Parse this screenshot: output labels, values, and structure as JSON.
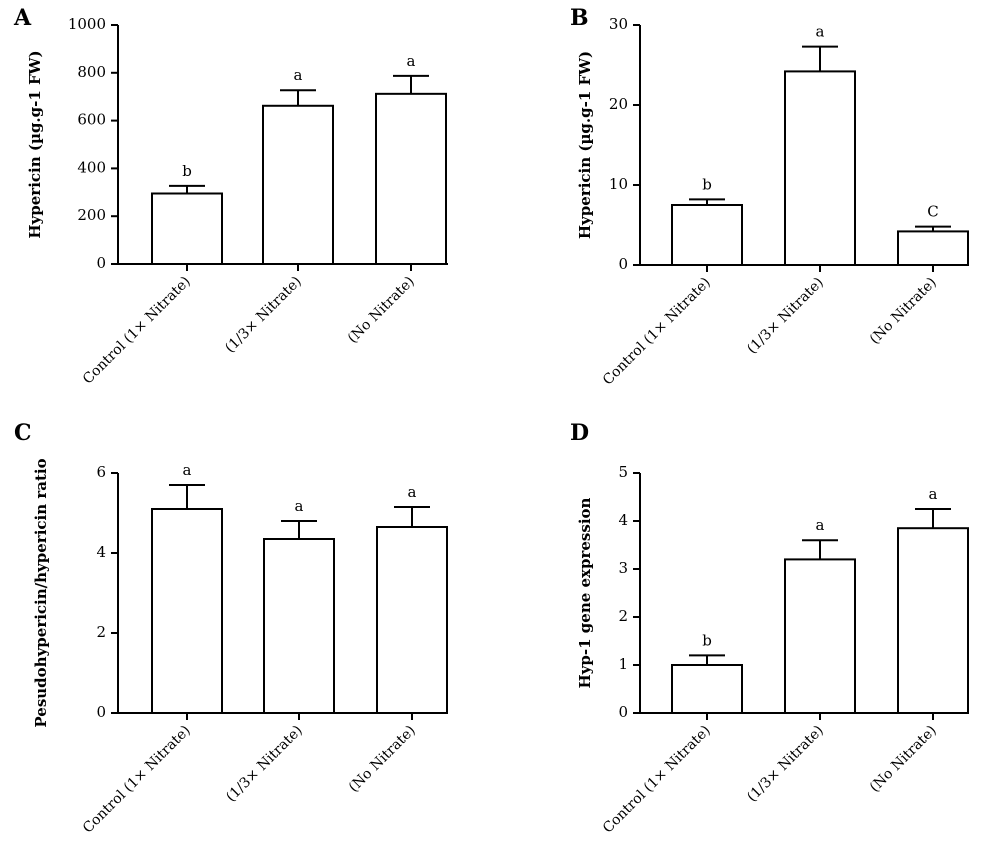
{
  "chart_data": [
    {
      "type": "bar",
      "panel": "A",
      "ylabel": "Hypericin (µg.g-1 FW)",
      "categories": [
        "Control (1× Nitrate)",
        "(1/3× Nitrate)",
        "(No Nitrate)"
      ],
      "values": [
        295,
        662,
        712
      ],
      "errors": [
        32,
        65,
        75
      ],
      "significance": [
        "b",
        "a",
        "a"
      ],
      "ylim": [
        0,
        1000
      ],
      "yticks": [
        "0",
        "200",
        "400",
        "600",
        "800",
        "1000"
      ],
      "grid": false
    },
    {
      "type": "bar",
      "panel": "B",
      "ylabel": "Hypericin (µg.g-1 FW)",
      "categories": [
        "Control (1× Nitrate)",
        "(1/3× Nitrate)",
        "(No Nitrate)"
      ],
      "values": [
        7.5,
        24.2,
        4.2
      ],
      "errors": [
        0.7,
        3.1,
        0.6
      ],
      "significance": [
        "b",
        "a",
        "C"
      ],
      "ylim": [
        0,
        30
      ],
      "yticks": [
        "0",
        "10",
        "20",
        "30"
      ],
      "grid": false
    },
    {
      "type": "bar",
      "panel": "C",
      "ylabel": "Pesudohypericin/hypericin ratio",
      "categories": [
        "Control (1× Nitrate)",
        "(1/3× Nitrate)",
        "(No Nitrate)"
      ],
      "values": [
        5.1,
        4.35,
        4.65
      ],
      "errors": [
        0.6,
        0.45,
        0.5
      ],
      "significance": [
        "a",
        "a",
        "a"
      ],
      "ylim": [
        0,
        6
      ],
      "yticks": [
        "0",
        "2",
        "4",
        "6"
      ],
      "grid": false
    },
    {
      "type": "bar",
      "panel": "D",
      "ylabel": "Hyp-1 gene expression",
      "categories": [
        "Control (1× Nitrate)",
        "(1/3× Nitrate)",
        "(No Nitrate)"
      ],
      "values": [
        1.0,
        3.2,
        3.85
      ],
      "errors": [
        0.2,
        0.4,
        0.4
      ],
      "significance": [
        "b",
        "a",
        "a"
      ],
      "ylim": [
        0,
        5
      ],
      "yticks": [
        "0",
        "1",
        "2",
        "3",
        "4",
        "5"
      ],
      "grid": false
    }
  ]
}
